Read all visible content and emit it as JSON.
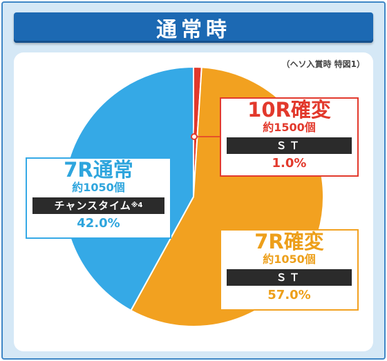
{
  "title": "通常時",
  "note": "（ヘソ入賞時 特図1）",
  "colors": {
    "red": "#e2392c",
    "orange": "#f2a120",
    "blue": "#35a9e6",
    "frame": "#3e86c6",
    "banner": "#1c69b3"
  },
  "chart_data": {
    "type": "pie",
    "series": [
      {
        "name": "10R確変",
        "balls": "約1500個",
        "mode": "ＳＴ",
        "mode_note": "",
        "percent_label": "1.0%",
        "value": 1.0,
        "color": "#e2392c"
      },
      {
        "name": "7R確変",
        "balls": "約1050個",
        "mode": "ＳＴ",
        "mode_note": "",
        "percent_label": "57.0%",
        "value": 57.0,
        "color": "#f2a120"
      },
      {
        "name": "7R通常",
        "balls": "約1050個",
        "mode": "チャンスタイム",
        "mode_note": "※4",
        "percent_label": "42.0%",
        "value": 42.0,
        "color": "#35a9e6"
      }
    ]
  }
}
